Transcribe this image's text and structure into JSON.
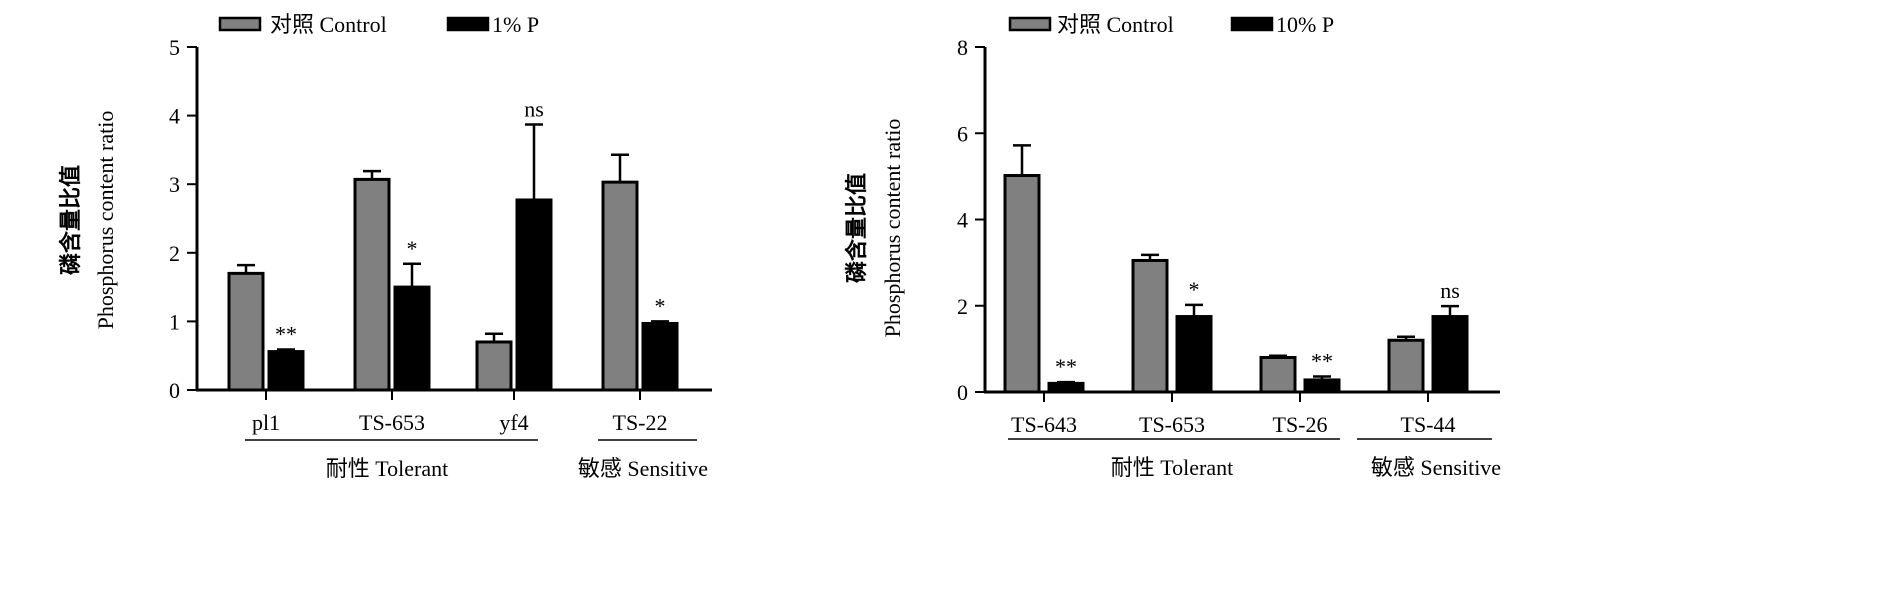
{
  "colors": {
    "control": "#808080",
    "treatment": "#000000",
    "axis": "#000000",
    "background": "#ffffff"
  },
  "chart_data": [
    {
      "type": "bar",
      "legend": [
        "对照 Control",
        "1% P"
      ],
      "legend_position": "top",
      "ylabel_cn": "磷含量比值",
      "ylabel_en": "Phosphorus content ratio",
      "ylim": [
        0,
        5
      ],
      "yticks": [
        "0",
        "1",
        "2",
        "3",
        "4",
        "5"
      ],
      "categories": [
        "pl1",
        "TS-653",
        "yf4",
        "TS-22"
      ],
      "groups": [
        {
          "label": "耐性 Tolerant",
          "categories": [
            "pl1",
            "TS-653",
            "yf4"
          ]
        },
        {
          "label": "敏感  Sensitive",
          "categories": [
            "TS-22"
          ]
        }
      ],
      "series": [
        {
          "name": "对照 Control",
          "values": [
            1.7,
            3.07,
            0.7,
            3.03
          ],
          "errors": [
            0.12,
            0.12,
            0.12,
            0.4
          ]
        },
        {
          "name": "1% P",
          "values": [
            0.56,
            1.5,
            2.77,
            0.97
          ],
          "errors": [
            0.03,
            0.34,
            1.1,
            0.03
          ]
        }
      ],
      "annotations": [
        "**",
        "*",
        "ns",
        "*"
      ],
      "grid": false
    },
    {
      "type": "bar",
      "legend": [
        "对照 Control",
        "10% P"
      ],
      "legend_position": "top",
      "ylabel_cn": "磷含量比值",
      "ylabel_en": "Phosphorus content ratio",
      "ylim": [
        0,
        8
      ],
      "yticks": [
        "0",
        "2",
        "4",
        "6",
        "8"
      ],
      "categories": [
        "TS-643",
        "TS-653",
        "TS-26",
        "TS-44"
      ],
      "groups": [
        {
          "label": "耐性 Tolerant",
          "categories": [
            "TS-643",
            "TS-653",
            "TS-26"
          ]
        },
        {
          "label": "敏感  Sensitive",
          "categories": [
            "TS-44"
          ]
        }
      ],
      "series": [
        {
          "name": "对照 Control",
          "values": [
            5.02,
            3.05,
            0.8,
            1.2
          ],
          "errors": [
            0.7,
            0.13,
            0.04,
            0.08
          ]
        },
        {
          "name": "10% P",
          "values": [
            0.2,
            1.75,
            0.28,
            1.75
          ],
          "errors": [
            0.03,
            0.27,
            0.08,
            0.24
          ]
        }
      ],
      "annotations": [
        "**",
        "*",
        "**",
        "ns"
      ],
      "grid": false
    }
  ]
}
